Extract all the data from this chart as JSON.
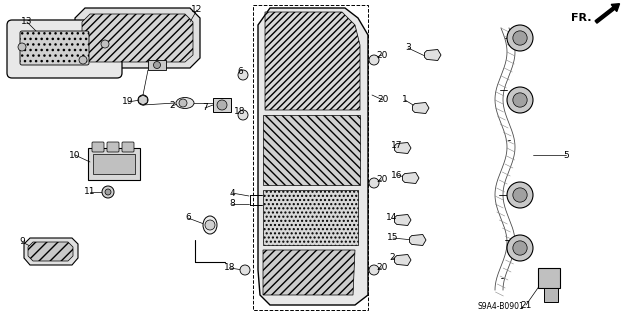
{
  "bg_color": "#ffffff",
  "diagram_code": "S9A4-B0901",
  "line_color": "#000000",
  "label_fontsize": 6.5,
  "gray_light": "#d8d8d8",
  "gray_mid": "#b8b8b8",
  "gray_dark": "#888888"
}
